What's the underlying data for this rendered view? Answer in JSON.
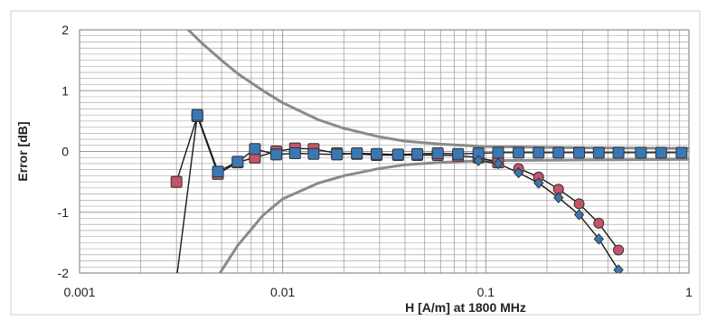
{
  "chart_data": {
    "type": "line",
    "title": "",
    "xlabel": "H [A/m] at 1800 MHz",
    "ylabel": "Error [dB]",
    "xscale": "log",
    "xlim": [
      0.001,
      1
    ],
    "ylim": [
      -2,
      2
    ],
    "xticks": [
      "0.001",
      "0.01",
      "0.1",
      "1"
    ],
    "yticks": [
      "2",
      "1",
      "0",
      "-1",
      "-2"
    ],
    "grid": true,
    "legend": "none",
    "colors": {
      "series_a": "#c5536a",
      "series_b": "#3a78b5",
      "envelope": "#8a8a8a",
      "line": "#1a1a1a",
      "grid": "#9a9a9a"
    },
    "series": [
      {
        "marker": "square",
        "color": "#c5536a",
        "x": [
          0.003,
          0.0038,
          0.0048,
          0.006,
          0.0073,
          0.0093,
          0.0115,
          0.0142,
          0.0185,
          0.0232,
          0.029,
          0.037,
          0.046,
          0.058,
          0.073,
          0.092,
          0.115
        ],
        "y": [
          -0.5,
          0.58,
          -0.37,
          -0.18,
          -0.1,
          0.0,
          0.05,
          0.04,
          -0.03,
          -0.04,
          -0.06,
          -0.06,
          -0.06,
          -0.06,
          -0.07,
          -0.1,
          -0.18
        ]
      },
      {
        "marker": "circle",
        "color": "#c5536a",
        "x": [
          0.145,
          0.182,
          0.228,
          0.288,
          0.36,
          0.45
        ],
        "y": [
          -0.28,
          -0.42,
          -0.62,
          -0.86,
          -1.18,
          -1.62
        ]
      },
      {
        "marker": "square",
        "color": "#3a78b5",
        "x": [
          0.0038,
          0.0048,
          0.006,
          0.0073,
          0.0093,
          0.0115,
          0.0142,
          0.0185,
          0.0232,
          0.029,
          0.037,
          0.046,
          0.058,
          0.073,
          0.092,
          0.115,
          0.145,
          0.182,
          0.228,
          0.288,
          0.36,
          0.45,
          0.58,
          0.73,
          0.92
        ],
        "y": [
          0.6,
          -0.33,
          -0.17,
          0.04,
          -0.05,
          -0.03,
          -0.04,
          -0.05,
          -0.03,
          -0.04,
          -0.05,
          -0.04,
          -0.03,
          -0.04,
          -0.03,
          -0.02,
          -0.02,
          -0.02,
          -0.02,
          -0.02,
          -0.02,
          -0.02,
          -0.02,
          -0.02,
          -0.02
        ]
      },
      {
        "marker": "diamond",
        "color": "#3a78b5",
        "x": [
          0.092,
          0.115,
          0.145,
          0.182,
          0.228,
          0.288,
          0.36,
          0.45
        ],
        "y": [
          -0.15,
          -0.2,
          -0.35,
          -0.52,
          -0.76,
          -1.04,
          -1.44,
          -1.95
        ]
      },
      {
        "marker": "none",
        "color": "#8a8a8a",
        "x": [
          0.0032,
          0.004,
          0.005,
          0.006,
          0.008,
          0.01,
          0.015,
          0.02,
          0.03,
          0.04,
          0.06,
          0.1,
          0.3,
          1
        ],
        "y": [
          2.1,
          1.78,
          1.5,
          1.28,
          1.0,
          0.8,
          0.52,
          0.38,
          0.24,
          0.17,
          0.12,
          0.08,
          0.06,
          0.05
        ]
      },
      {
        "marker": "none",
        "color": "#8a8a8a",
        "x": [
          0.0048,
          0.006,
          0.008,
          0.01,
          0.015,
          0.02,
          0.03,
          0.04,
          0.06,
          0.1,
          0.3,
          1
        ],
        "y": [
          -2.05,
          -1.55,
          -1.05,
          -0.78,
          -0.52,
          -0.4,
          -0.28,
          -0.22,
          -0.18,
          -0.15,
          -0.14,
          -0.13
        ]
      },
      {
        "marker": "none",
        "color": "#1a1a1a",
        "x": [
          0.003,
          0.0038
        ],
        "y": [
          -2.1,
          0.6
        ]
      }
    ]
  }
}
